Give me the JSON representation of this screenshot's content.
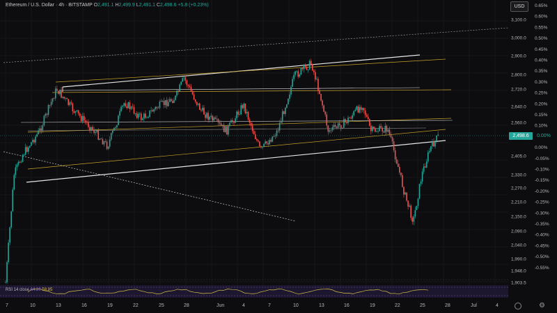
{
  "legend": {
    "symbol": "Ethereum / U.S. Dollar · 4h · BITSTAMP",
    "o_label": "O",
    "o": "2,491.1",
    "h_label": "H",
    "h": "2,499.9",
    "l_label": "L",
    "l": "2,491.1",
    "c_label": "C",
    "c": "2,498.6",
    "change": "+5.8 (+0.23%)"
  },
  "currency": "USD",
  "price_axis": [
    {
      "price": 3100,
      "label": "3,100.0"
    },
    {
      "price": 3000,
      "label": "3,000.0"
    },
    {
      "price": 2900,
      "label": "2,900.0"
    },
    {
      "price": 2800,
      "label": "2,800.0"
    },
    {
      "price": 2720,
      "label": "2,720.0"
    },
    {
      "price": 2640,
      "label": "2,640.0"
    },
    {
      "price": 2560,
      "label": "2,560.0"
    },
    {
      "price": 2405,
      "label": "2,405.0"
    },
    {
      "price": 2330,
      "label": "2,330.0"
    },
    {
      "price": 2270,
      "label": "2,270.0"
    },
    {
      "price": 2210,
      "label": "2,210.0"
    },
    {
      "price": 2150,
      "label": "2,150.0"
    },
    {
      "price": 2090,
      "label": "2,090.0"
    },
    {
      "price": 2040,
      "label": "2,040.0"
    },
    {
      "price": 1990,
      "label": "1,990.0"
    },
    {
      "price": 1946,
      "label": "1,946.0"
    },
    {
      "price": 1903.5,
      "label": "1,903.5"
    }
  ],
  "pct_axis": [
    "0.65%",
    "0.60%",
    "0.55%",
    "0.50%",
    "0.45%",
    "0.40%",
    "0.35%",
    "0.30%",
    "0.25%",
    "0.20%",
    "0.15%",
    "0.10%",
    "0.05%",
    "0.00%",
    "-0.05%",
    "-0.10%",
    "-0.15%",
    "-0.20%",
    "-0.25%",
    "-0.30%",
    "-0.35%",
    "-0.40%",
    "-0.45%",
    "-0.50%",
    "-0.55%"
  ],
  "last_price": {
    "value": 2498.6,
    "label": "2,498.6",
    "pct": "0.00%"
  },
  "time_axis": [
    "7",
    "10",
    "13",
    "16",
    "19",
    "22",
    "25",
    "28",
    "Jun",
    "4",
    "7",
    "10",
    "13",
    "16",
    "19",
    "22",
    "25",
    "28",
    "Jul",
    "4"
  ],
  "rsi": {
    "label": "RSI 14 close",
    "value1": "64.20",
    "value2": "58.85"
  },
  "colors": {
    "up": "#26a69a",
    "down": "#ef5350",
    "channel": "#e6e6e6",
    "fib": "#c9a227",
    "rsi_line": "#d7c04a",
    "rsi_bg": "#2a1f4a"
  },
  "icons": {
    "settings": "gear-icon",
    "scale": "scale-mode-icon"
  },
  "chart_data": {
    "type": "candlestick",
    "symbol": "Ethereum / U.S. Dollar",
    "interval": "4h",
    "y_range": [
      1900,
      3150
    ],
    "close_path": [
      {
        "date": "May 7",
        "close": 1903
      },
      {
        "date": "May 8",
        "close": 2330
      },
      {
        "date": "May 9",
        "close": 2410
      },
      {
        "date": "May 11",
        "close": 2520
      },
      {
        "date": "May 13",
        "close": 2720
      },
      {
        "date": "May 15",
        "close": 2620
      },
      {
        "date": "May 17",
        "close": 2540
      },
      {
        "date": "May 19",
        "close": 2450
      },
      {
        "date": "May 21",
        "close": 2660
      },
      {
        "date": "May 23",
        "close": 2580
      },
      {
        "date": "May 25",
        "close": 2640
      },
      {
        "date": "May 27",
        "close": 2680
      },
      {
        "date": "May 28",
        "close": 2780
      },
      {
        "date": "May 30",
        "close": 2620
      },
      {
        "date": "Jun 1",
        "close": 2520
      },
      {
        "date": "Jun 3",
        "close": 2650
      },
      {
        "date": "Jun 5",
        "close": 2430
      },
      {
        "date": "Jun 7",
        "close": 2520
      },
      {
        "date": "Jun 9",
        "close": 2790
      },
      {
        "date": "Jun 11",
        "close": 2860
      },
      {
        "date": "Jun 12",
        "close": 2700
      },
      {
        "date": "Jun 13",
        "close": 2520
      },
      {
        "date": "Jun 15",
        "close": 2560
      },
      {
        "date": "Jun 17",
        "close": 2650
      },
      {
        "date": "Jun 18",
        "close": 2520
      },
      {
        "date": "Jun 20",
        "close": 2530
      },
      {
        "date": "Jun 21",
        "close": 2390
      },
      {
        "date": "Jun 22",
        "close": 2240
      },
      {
        "date": "Jun 23",
        "close": 2130
      },
      {
        "date": "Jun 24",
        "close": 2330
      },
      {
        "date": "Jun 25",
        "close": 2440
      },
      {
        "date": "Jun 26",
        "close": 2498.6
      }
    ]
  }
}
